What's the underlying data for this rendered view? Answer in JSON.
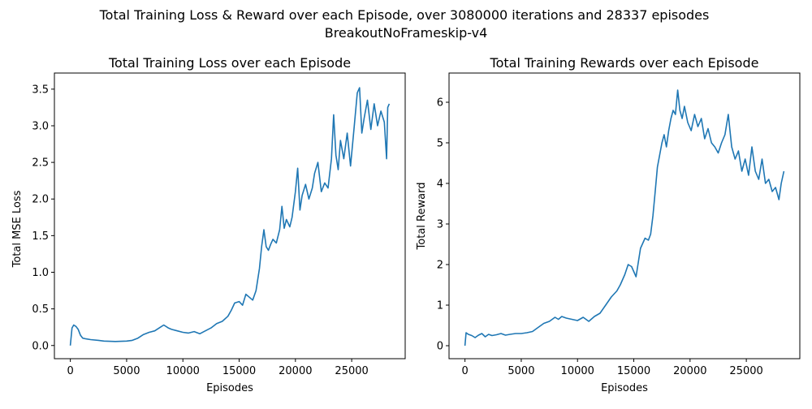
{
  "figure": {
    "suptitle_line1": "Total Training Loss & Reward over each Episode, over 3080000 iterations and 28337 episodes",
    "suptitle_line2": "BreakoutNoFrameskip-v4"
  },
  "colors": {
    "series": "#1f77b4",
    "axes": "#000000",
    "background": "#ffffff"
  },
  "chart_data": [
    {
      "type": "line",
      "title": "Total Training Loss over each Episode",
      "xlabel": "Episodes",
      "ylabel": "Total MSE Loss",
      "xlim": [
        -1417,
        29754
      ],
      "ylim": [
        -0.18,
        3.72
      ],
      "xticks": [
        0,
        5000,
        10000,
        15000,
        20000,
        25000
      ],
      "xtick_labels": [
        "0",
        "5000",
        "10000",
        "15000",
        "20000",
        "25000"
      ],
      "yticks": [
        0.0,
        0.5,
        1.0,
        1.5,
        2.0,
        2.5,
        3.0,
        3.5
      ],
      "ytick_labels": [
        "0.0",
        "0.5",
        "1.0",
        "1.5",
        "2.0",
        "2.5",
        "3.0",
        "3.5"
      ],
      "grid": false,
      "series": [
        {
          "x": [
            0,
            150,
            300,
            500,
            700,
            900,
            1100,
            1400,
            1800,
            2500,
            3000,
            4000,
            5000,
            5500,
            6000,
            6500,
            7000,
            7500,
            8000,
            8300,
            8700,
            9000,
            9500,
            10000,
            10500,
            11000,
            11500,
            12000,
            12500,
            13000,
            13500,
            14000,
            14300,
            14600,
            15000,
            15300,
            15600,
            15900,
            16200,
            16500,
            16800,
            17000,
            17200,
            17400,
            17600,
            17800,
            18000,
            18300,
            18600,
            18800,
            19000,
            19200,
            19500,
            19700,
            20000,
            20200,
            20400,
            20600,
            20900,
            21200,
            21500,
            21700,
            22000,
            22300,
            22600,
            22900,
            23200,
            23400,
            23600,
            23800,
            24000,
            24300,
            24600,
            24900,
            25200,
            25500,
            25700,
            25900,
            26100,
            26400,
            26700,
            27000,
            27300,
            27600,
            27900,
            28100,
            28200,
            28337
          ],
          "y": [
            0.0,
            0.24,
            0.28,
            0.26,
            0.22,
            0.14,
            0.1,
            0.09,
            0.08,
            0.07,
            0.06,
            0.055,
            0.06,
            0.07,
            0.1,
            0.15,
            0.18,
            0.2,
            0.25,
            0.28,
            0.24,
            0.22,
            0.2,
            0.18,
            0.17,
            0.19,
            0.16,
            0.2,
            0.24,
            0.3,
            0.33,
            0.4,
            0.48,
            0.58,
            0.6,
            0.55,
            0.7,
            0.66,
            0.62,
            0.75,
            1.05,
            1.35,
            1.58,
            1.35,
            1.3,
            1.38,
            1.45,
            1.4,
            1.58,
            1.9,
            1.6,
            1.72,
            1.62,
            1.75,
            2.1,
            2.42,
            1.85,
            2.05,
            2.2,
            2.0,
            2.15,
            2.35,
            2.5,
            2.1,
            2.22,
            2.15,
            2.55,
            3.15,
            2.6,
            2.4,
            2.8,
            2.55,
            2.9,
            2.45,
            2.95,
            3.45,
            3.52,
            2.9,
            3.1,
            3.35,
            2.95,
            3.3,
            3.0,
            3.2,
            3.05,
            2.55,
            3.25,
            3.3
          ]
        }
      ]
    },
    {
      "type": "line",
      "title": "Total Training Rewards over each Episode",
      "xlabel": "Episodes",
      "ylabel": "Total Reward",
      "xlim": [
        -1417,
        29754
      ],
      "ylim": [
        -0.32,
        6.72
      ],
      "xticks": [
        0,
        5000,
        10000,
        15000,
        20000,
        25000
      ],
      "xtick_labels": [
        "0",
        "5000",
        "10000",
        "15000",
        "20000",
        "25000"
      ],
      "yticks": [
        0,
        1,
        2,
        3,
        4,
        5,
        6
      ],
      "ytick_labels": [
        "0",
        "1",
        "2",
        "3",
        "4",
        "5",
        "6"
      ],
      "grid": false,
      "series": [
        {
          "x": [
            0,
            100,
            300,
            600,
            900,
            1200,
            1500,
            1800,
            2100,
            2400,
            2800,
            3200,
            3600,
            4000,
            4500,
            5000,
            5500,
            6000,
            6500,
            7000,
            7500,
            8000,
            8300,
            8600,
            9000,
            9500,
            10000,
            10500,
            11000,
            11500,
            12000,
            12500,
            13000,
            13500,
            13800,
            14200,
            14500,
            14800,
            15200,
            15600,
            16000,
            16300,
            16500,
            16700,
            16900,
            17100,
            17300,
            17500,
            17700,
            17900,
            18100,
            18300,
            18500,
            18700,
            18900,
            19100,
            19300,
            19500,
            19800,
            20100,
            20400,
            20700,
            21000,
            21300,
            21600,
            21900,
            22200,
            22500,
            22800,
            23100,
            23400,
            23700,
            24000,
            24300,
            24600,
            24900,
            25200,
            25500,
            25800,
            26100,
            26400,
            26700,
            27000,
            27300,
            27600,
            27900,
            28100,
            28337
          ],
          "y": [
            0.0,
            0.32,
            0.28,
            0.25,
            0.2,
            0.26,
            0.3,
            0.22,
            0.28,
            0.25,
            0.27,
            0.3,
            0.26,
            0.28,
            0.3,
            0.3,
            0.32,
            0.35,
            0.45,
            0.55,
            0.6,
            0.7,
            0.65,
            0.72,
            0.68,
            0.65,
            0.62,
            0.7,
            0.6,
            0.72,
            0.8,
            1.0,
            1.2,
            1.35,
            1.5,
            1.75,
            2.0,
            1.95,
            1.7,
            2.4,
            2.65,
            2.6,
            2.75,
            3.2,
            3.8,
            4.4,
            4.7,
            5.0,
            5.2,
            4.9,
            5.3,
            5.6,
            5.8,
            5.7,
            6.3,
            5.8,
            5.6,
            5.9,
            5.5,
            5.3,
            5.7,
            5.4,
            5.6,
            5.1,
            5.35,
            5.0,
            4.9,
            4.75,
            5.0,
            5.2,
            5.7,
            4.9,
            4.6,
            4.8,
            4.3,
            4.6,
            4.2,
            4.9,
            4.3,
            4.1,
            4.6,
            4.0,
            4.1,
            3.8,
            3.9,
            3.6,
            4.0,
            4.3
          ]
        }
      ]
    }
  ]
}
